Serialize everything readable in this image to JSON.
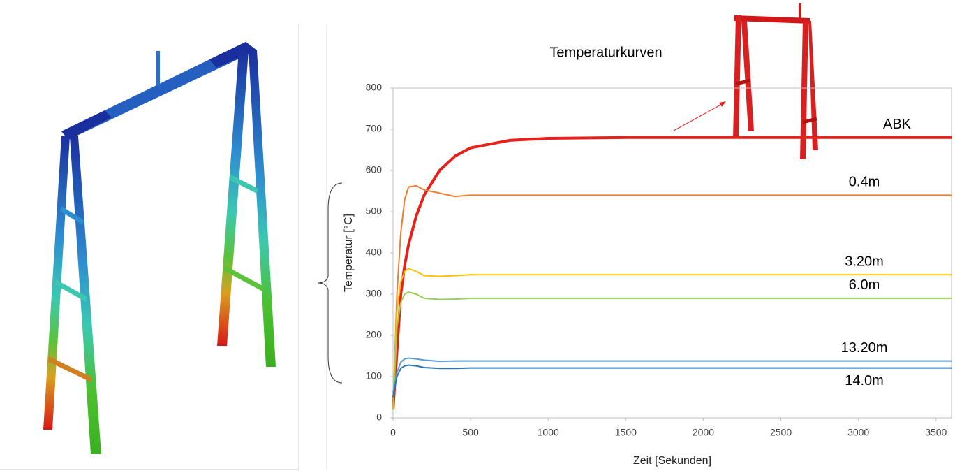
{
  "chart_data": {
    "type": "line",
    "title": "Temperaturkurven",
    "xlabel": "Zeit [Sekunden]",
    "ylabel": "Temperatur [°C]",
    "x": [
      0,
      25,
      50,
      75,
      100,
      150,
      200,
      300,
      400,
      500,
      750,
      1000,
      1500,
      2000,
      2500,
      3000,
      3600
    ],
    "series": [
      {
        "name": "ABK",
        "color": "#e8201a",
        "line_width": 4,
        "values": [
          20,
          160,
          300,
          370,
          420,
          490,
          540,
          600,
          635,
          655,
          673,
          678,
          680,
          680,
          680,
          680,
          680
        ]
      },
      {
        "name": "0.4m",
        "color": "#ed7d31",
        "line_width": 2,
        "values": [
          20,
          300,
          450,
          530,
          560,
          563,
          553,
          545,
          537,
          540,
          540,
          540,
          540,
          540,
          540,
          540,
          540
        ]
      },
      {
        "name": "3.20m",
        "color": "#ffc000",
        "line_width": 2,
        "values": [
          20,
          260,
          330,
          355,
          362,
          355,
          345,
          343,
          345,
          347,
          347,
          347,
          347,
          347,
          347,
          347,
          347
        ]
      },
      {
        "name": "6.0m",
        "color": "#92d050",
        "line_width": 2,
        "values": [
          20,
          220,
          280,
          300,
          305,
          300,
          290,
          287,
          288,
          290,
          290,
          290,
          290,
          290,
          290,
          290,
          290
        ]
      },
      {
        "name": "13.20m",
        "color": "#5b9bd5",
        "line_width": 2,
        "values": [
          60,
          110,
          135,
          143,
          145,
          143,
          140,
          137,
          138,
          138,
          138,
          138,
          138,
          138,
          138,
          138,
          138
        ]
      },
      {
        "name": "14.0m",
        "color": "#2e75b6",
        "line_width": 2,
        "values": [
          50,
          100,
          120,
          126,
          128,
          126,
          122,
          120,
          120,
          121,
          121,
          121,
          121,
          121,
          121,
          121,
          121
        ]
      }
    ],
    "xlim": [
      0,
      3600
    ],
    "xticks": [
      0,
      500,
      1000,
      1500,
      2000,
      2500,
      3000,
      3500
    ],
    "ylim": [
      0,
      800
    ],
    "yticks": [
      0,
      100,
      200,
      300,
      400,
      500,
      600,
      700,
      800
    ],
    "grid": false
  }
}
